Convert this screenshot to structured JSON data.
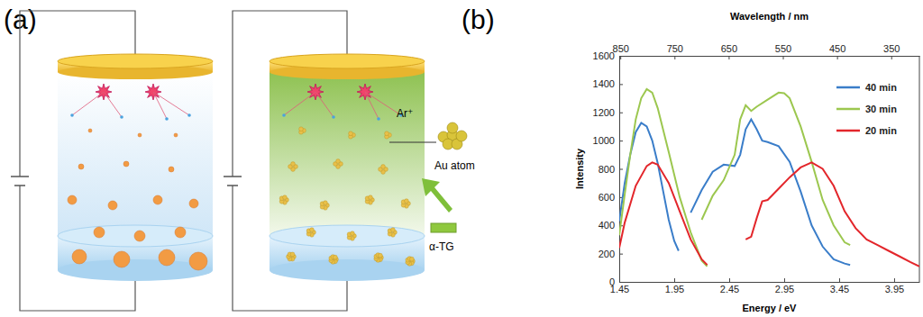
{
  "diagram": {
    "label": "(a)",
    "ion_label": "Ar⁺",
    "cluster_label": "Au atom",
    "ligand_label": "α-TG"
  },
  "chart_data": {
    "type": "line",
    "annotations": [
      "(b)"
    ],
    "xlabel": "Energy / eV",
    "ylabel": "Intensity",
    "x2label": "Wavelength / nm",
    "xlim": [
      1.45,
      4.18
    ],
    "xticks": [
      1.45,
      1.95,
      2.45,
      2.95,
      3.45,
      3.95
    ],
    "x2lim": [
      852,
      298
    ],
    "x2ticks": [
      850,
      750,
      650,
      550,
      450,
      350
    ],
    "ylim": [
      0,
      1600
    ],
    "yticks": [
      0,
      200,
      400,
      600,
      800,
      1000,
      1200,
      1400,
      1600
    ],
    "legend": "upper right",
    "series": [
      {
        "name": "40 min",
        "color": "#3a7dc9",
        "x": [
          1.45,
          1.5,
          1.55,
          1.6,
          1.65,
          1.7,
          1.75,
          1.8,
          1.85,
          1.9,
          1.95,
          1.99,
          null,
          2.1,
          2.2,
          2.3,
          2.4,
          2.5,
          2.55,
          2.6,
          2.65,
          2.7,
          2.75,
          2.8,
          2.9,
          3.0,
          3.1,
          3.2,
          3.3,
          3.4,
          3.5,
          3.55
        ],
        "values": [
          430,
          700,
          900,
          1060,
          1125,
          1100,
          1000,
          840,
          640,
          440,
          290,
          220,
          null,
          490,
          650,
          780,
          830,
          820,
          900,
          1080,
          1150,
          1080,
          1000,
          990,
          960,
          850,
          640,
          400,
          250,
          160,
          130,
          120
        ]
      },
      {
        "name": "30 min",
        "color": "#9cc74f",
        "x": [
          1.45,
          1.5,
          1.55,
          1.6,
          1.65,
          1.7,
          1.75,
          1.8,
          1.9,
          2.0,
          2.1,
          2.2,
          2.25,
          null,
          2.2,
          2.3,
          2.4,
          2.5,
          2.55,
          2.6,
          2.65,
          2.7,
          2.8,
          2.9,
          2.95,
          3.0,
          3.1,
          3.2,
          3.3,
          3.4,
          3.5,
          3.55
        ],
        "values": [
          330,
          620,
          900,
          1150,
          1300,
          1365,
          1340,
          1230,
          920,
          600,
          350,
          150,
          110,
          null,
          440,
          610,
          720,
          900,
          1150,
          1250,
          1210,
          1240,
          1290,
          1340,
          1335,
          1300,
          1100,
          850,
          580,
          400,
          280,
          260
        ]
      },
      {
        "name": "20 min",
        "color": "#e3262b",
        "x": [
          1.45,
          1.5,
          1.6,
          1.7,
          1.75,
          1.8,
          1.9,
          2.0,
          2.1,
          2.2,
          2.25,
          null,
          2.6,
          2.65,
          2.7,
          2.75,
          2.8,
          2.9,
          3.0,
          3.1,
          3.2,
          3.3,
          3.4,
          3.5,
          3.6,
          3.7,
          3.8,
          3.9,
          4.0,
          4.1,
          4.18
        ],
        "values": [
          240,
          420,
          680,
          820,
          845,
          830,
          700,
          500,
          300,
          160,
          120,
          null,
          300,
          320,
          450,
          570,
          580,
          660,
          740,
          810,
          845,
          800,
          680,
          500,
          380,
          300,
          260,
          220,
          180,
          140,
          110
        ]
      }
    ]
  }
}
